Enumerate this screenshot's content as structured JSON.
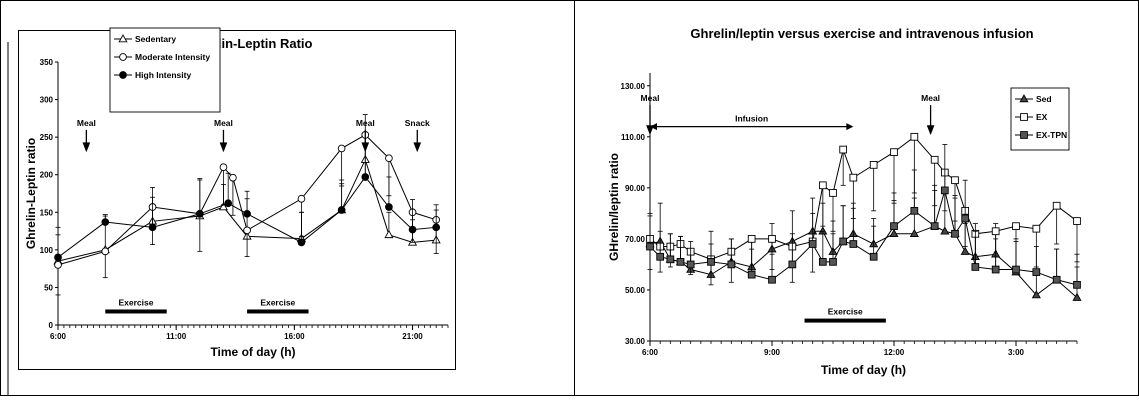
{
  "chart_data": [
    {
      "type": "line",
      "title": "Ghrelin-Leptin Ratio",
      "xlabel": "Time of day (h)",
      "ylabel": "Ghrelin-Leptin ratio",
      "xlim": [
        6,
        22.5
      ],
      "ylim": [
        0,
        350
      ],
      "yticks": [
        0,
        50,
        100,
        150,
        200,
        250,
        300,
        350
      ],
      "xticks": [
        {
          "v": 6,
          "label": "6:00"
        },
        {
          "v": 11,
          "label": "11:00"
        },
        {
          "v": 16,
          "label": "16:00"
        },
        {
          "v": 21,
          "label": "21:00"
        }
      ],
      "grid": false,
      "legend": "top-left",
      "series": [
        {
          "name": "Sedentary",
          "marker": "triangle-open",
          "x": [
            6,
            8,
            10,
            12,
            13,
            14,
            16.3,
            18,
            19,
            20,
            21,
            22
          ],
          "y": [
            85,
            100,
            138,
            145,
            157,
            118,
            115,
            153,
            220,
            120,
            110,
            113
          ],
          "err": [
            35,
            45,
            45,
            50,
            30,
            50,
            35,
            35,
            60,
            30,
            30,
            40
          ]
        },
        {
          "name": "Moderate Intensity",
          "marker": "circle-open",
          "x": [
            6,
            8,
            10,
            12,
            13,
            13.4,
            14,
            16.3,
            18,
            19,
            20,
            21,
            22
          ],
          "y": [
            80,
            98,
            157,
            148,
            210,
            196,
            126,
            168,
            235,
            253,
            222,
            150,
            140
          ],
          "err": [
            40,
            35,
            50,
            50,
            50,
            50,
            35,
            50,
            50,
            55,
            50,
            40,
            45
          ]
        },
        {
          "name": "High Intensity",
          "marker": "circle-filled",
          "x": [
            6,
            8,
            10,
            12,
            13.2,
            14,
            16.3,
            18,
            19,
            20,
            21,
            22
          ],
          "y": [
            90,
            137,
            130,
            148,
            162,
            148,
            110,
            153,
            197,
            157,
            127,
            130
          ],
          "err": [
            40,
            10,
            40,
            45,
            40,
            30,
            40,
            40,
            45,
            40,
            40,
            30
          ]
        }
      ],
      "annotations": [
        {
          "text": "Meal",
          "x": 7.2,
          "y": 265,
          "arrow_to": 248
        },
        {
          "text": "Meal",
          "x": 13,
          "y": 265,
          "arrow_to": 248
        },
        {
          "text": "Meal",
          "x": 19,
          "y": 265,
          "arrow_to": 248
        },
        {
          "text": "Snack",
          "x": 21.2,
          "y": 265,
          "arrow_to": 248
        }
      ],
      "bars": [
        {
          "text": "Exercise",
          "x0": 8,
          "x1": 10.6,
          "y": 18
        },
        {
          "text": "Exercise",
          "x0": 14,
          "x1": 16.6,
          "y": 18
        }
      ]
    },
    {
      "type": "line",
      "title": "Ghrelin/leptin versus exercise and intravenous infusion",
      "xlabel": "Time of day (h)",
      "ylabel": "GHrelin/leptin ratio",
      "xlim": [
        6,
        16.5
      ],
      "ylim": [
        30,
        135
      ],
      "yticks": [
        30,
        50,
        70,
        90,
        110,
        130
      ],
      "ytick_labels": [
        "30.00",
        "50.00",
        "70.00",
        "90.00",
        "110.00",
        "130.00"
      ],
      "xticks": [
        {
          "v": 6,
          "label": "6:00"
        },
        {
          "v": 9,
          "label": "9:00"
        },
        {
          "v": 12,
          "label": "12:00"
        },
        {
          "v": 15,
          "label": "3:00"
        }
      ],
      "grid": false,
      "legend": "top-right",
      "series": [
        {
          "name": "Sed",
          "marker": "triangle-filled",
          "x": [
            6,
            6.25,
            6.5,
            6.75,
            7,
            7.5,
            8,
            8.5,
            9,
            9.5,
            10,
            10.25,
            10.5,
            10.75,
            11,
            11.5,
            12,
            12.5,
            13,
            13.25,
            13.5,
            13.75,
            14,
            14.5,
            15,
            15.5,
            16,
            16.5
          ],
          "y": [
            68,
            69,
            62,
            61,
            58,
            56,
            61,
            59,
            66,
            69,
            73,
            73,
            65,
            69,
            72,
            68,
            72,
            72,
            75,
            73,
            72,
            65,
            63,
            64,
            57,
            48,
            54,
            47
          ],
          "err": [
            12,
            15,
            10,
            10,
            8,
            12,
            9,
            10,
            10,
            12,
            13,
            11,
            12,
            14,
            12,
            10,
            13,
            14,
            16,
            15,
            14,
            11,
            13,
            12,
            12,
            10,
            12,
            12
          ]
        },
        {
          "name": "EX",
          "marker": "square-open",
          "x": [
            6,
            6.25,
            6.5,
            6.75,
            7,
            7.5,
            8,
            8.5,
            9,
            9.5,
            10,
            10.25,
            10.5,
            10.75,
            11,
            11.5,
            12,
            12.5,
            13,
            13.25,
            13.5,
            13.75,
            14,
            14.5,
            15,
            15.5,
            16,
            16.5
          ],
          "y": [
            70,
            67,
            67,
            68,
            65,
            62,
            65,
            70,
            70,
            67,
            69,
            91,
            88,
            105,
            94,
            99,
            104,
            110,
            101,
            96,
            93,
            81,
            72,
            73,
            75,
            74,
            83,
            77
          ],
          "err": [
            12,
            10,
            8,
            8,
            9,
            10,
            12,
            13,
            12,
            14,
            12,
            16,
            15,
            14,
            16,
            18,
            20,
            22,
            18,
            15,
            16,
            14,
            12,
            14,
            16,
            15,
            15,
            16
          ]
        },
        {
          "name": "EX-TPN",
          "marker": "square-filled",
          "x": [
            6,
            6.25,
            6.5,
            6.75,
            7,
            7.5,
            8,
            8.5,
            9,
            9.5,
            10,
            10.25,
            10.5,
            10.75,
            11,
            11.5,
            12,
            12.5,
            13,
            13.25,
            13.5,
            13.75,
            14,
            14.5,
            15,
            15.5,
            16,
            16.5
          ],
          "y": [
            67,
            63,
            62,
            61,
            60,
            61,
            60,
            56,
            54,
            60,
            68,
            61,
            61,
            69,
            68,
            63,
            75,
            81,
            75,
            89,
            72,
            78,
            59,
            58,
            58,
            57,
            54,
            52
          ],
          "err": [
            12,
            10,
            10,
            10,
            9,
            12,
            10,
            10,
            10,
            12,
            12,
            12,
            11,
            14,
            14,
            12,
            13,
            16,
            14,
            18,
            15,
            15,
            14,
            12,
            12,
            10,
            12,
            12
          ]
        }
      ],
      "annotations": [
        {
          "text": "Meal",
          "x": 6,
          "y": 124,
          "arrow_to": 116
        },
        {
          "text": "Meal",
          "x": 12.9,
          "y": 124,
          "arrow_to": 116
        }
      ],
      "span": {
        "text": "Infusion",
        "x0": 6,
        "x1": 11,
        "y": 114
      },
      "bars": [
        {
          "text": "Exercise",
          "x0": 9.8,
          "x1": 11.8,
          "y": 38
        }
      ]
    }
  ]
}
